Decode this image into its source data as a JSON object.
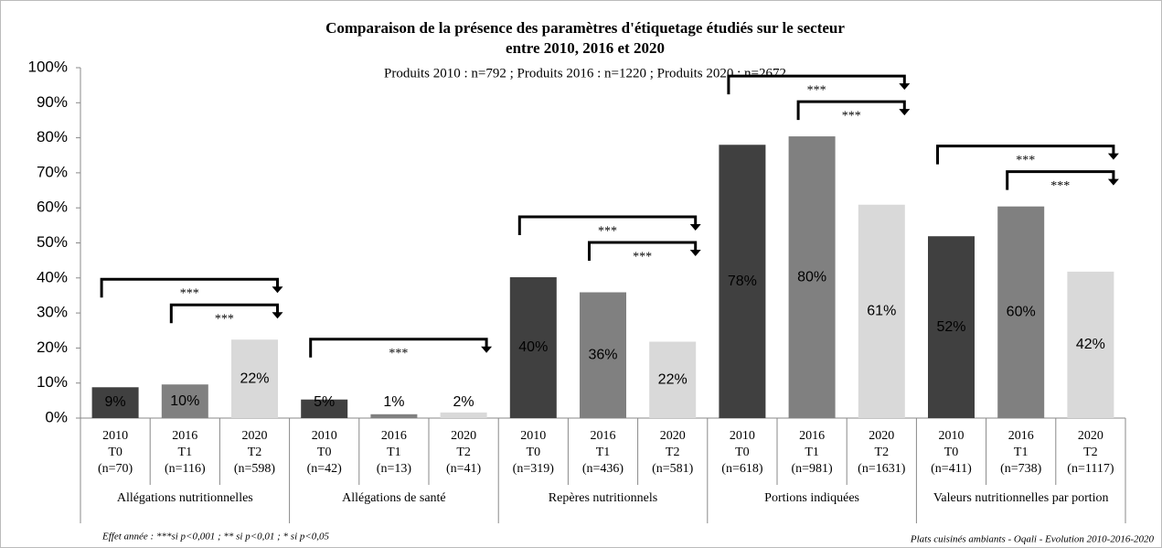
{
  "chart_data": {
    "type": "bar",
    "title": [
      "Comparaison de la présence des paramètres d'étiquetage étudiés sur le secteur",
      "entre 2010, 2016 et 2020"
    ],
    "subtitle": "Produits 2010 : n=792 ; Produits 2016 : n=1220 ; Produits 2020 : n=2672",
    "categories": [
      [
        "2010",
        "T0",
        "(n=70)"
      ],
      [
        "2016",
        "T1",
        "(n=116)"
      ],
      [
        "2020",
        "T2",
        "(n=598)"
      ],
      [
        "2010",
        "T0",
        "(n=42)"
      ],
      [
        "2016",
        "T1",
        "(n=13)"
      ],
      [
        "2020",
        "T2",
        "(n=41)"
      ],
      [
        "2010",
        "T0",
        "(n=319)"
      ],
      [
        "2016",
        "T1",
        "(n=436)"
      ],
      [
        "2020",
        "T2",
        "(n=581)"
      ],
      [
        "2010",
        "T0",
        "(n=618)"
      ],
      [
        "2016",
        "T1",
        "(n=981)"
      ],
      [
        "2020",
        "T2",
        "(n=1631)"
      ],
      [
        "2010",
        "T0",
        "(n=411)"
      ],
      [
        "2016",
        "T1",
        "(n=738)"
      ],
      [
        "2020",
        "T2",
        "(n=1117)"
      ]
    ],
    "groups": [
      "Allégations nutritionnelles",
      "Allégations de santé",
      "Repères nutritionnels",
      "Portions indiquées",
      "Valeurs nutritionnelles par portion"
    ],
    "values": [
      8.8,
      9.6,
      22.4,
      5.3,
      1.1,
      1.6,
      40.2,
      35.9,
      21.8,
      78.0,
      80.4,
      60.9,
      51.9,
      60.4,
      41.8
    ],
    "value_labels": [
      "9%",
      "10%",
      "22%",
      "5%",
      "1%",
      "2%",
      "40%",
      "36%",
      "22%",
      "78%",
      "80%",
      "61%",
      "52%",
      "60%",
      "42%"
    ],
    "colors": [
      "#404040",
      "#808080",
      "#d9d9d9"
    ],
    "ylim": [
      0,
      100
    ],
    "yticks": [
      {
        "value": 0,
        "label": "0%"
      },
      {
        "value": 10,
        "label": "10%"
      },
      {
        "value": 20,
        "label": "20%"
      },
      {
        "value": 30,
        "label": "30%"
      },
      {
        "value": 40,
        "label": "40%"
      },
      {
        "value": 50,
        "label": "50%"
      },
      {
        "value": 60,
        "label": "60%"
      },
      {
        "value": 70,
        "label": "70%"
      },
      {
        "value": 80,
        "label": "80%"
      },
      {
        "value": 90,
        "label": "90%"
      },
      {
        "value": 100,
        "label": "100%"
      }
    ],
    "significance": [
      {
        "from": 0,
        "to": 2,
        "label": "***"
      },
      {
        "from": 1,
        "to": 2,
        "label": "***"
      },
      {
        "from": 3,
        "to": 5,
        "label": "***"
      },
      {
        "from": 6,
        "to": 8,
        "label": "***"
      },
      {
        "from": 7,
        "to": 8,
        "label": "***"
      },
      {
        "from": 9,
        "to": 11,
        "label": "***"
      },
      {
        "from": 10,
        "to": 11,
        "label": "***"
      },
      {
        "from": 12,
        "to": 14,
        "label": "***"
      },
      {
        "from": 13,
        "to": 14,
        "label": "***"
      }
    ],
    "footnote_left": "Effet année : ***si p<0,001 ; ** si p<0,01 ; * si p<0,05",
    "footnote_right": "Plats cuisinés ambiants - Oqali - Evolution 2010-2016-2020"
  }
}
